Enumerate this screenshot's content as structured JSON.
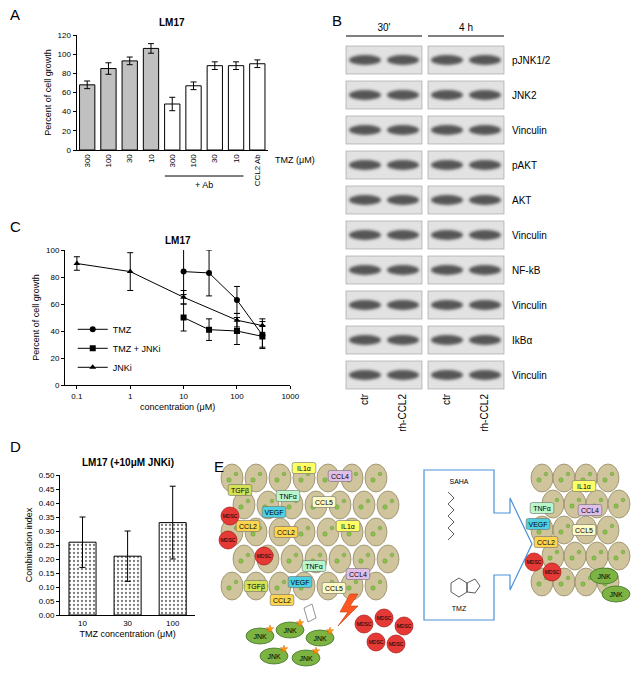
{
  "panel_labels": [
    "A",
    "B",
    "C",
    "D",
    "E"
  ],
  "chart_data": [
    {
      "panel": "A",
      "type": "bar",
      "title": "LM17",
      "categories": [
        "300",
        "100",
        "30",
        "10",
        "300",
        "100",
        "30",
        "10",
        "CCL2 Ab"
      ],
      "values": [
        68,
        85,
        93,
        106,
        48,
        67,
        88,
        88,
        90
      ],
      "errors": [
        4,
        6,
        4,
        5,
        7,
        4,
        4,
        4,
        4
      ],
      "colors": [
        "#c0c0c0",
        "#c0c0c0",
        "#c0c0c0",
        "#c0c0c0",
        "#ffffff",
        "#ffffff",
        "#ffffff",
        "#ffffff",
        "#ffffff"
      ],
      "ylabel": "Percent of cell growth",
      "xlabel": "TMZ (μM)",
      "ylim": [
        0,
        120
      ],
      "yticks": [
        0,
        20,
        40,
        60,
        80,
        100,
        120
      ],
      "grid": false,
      "annotations": [
        {
          "text": "+ Ab",
          "from": 4,
          "to": 7
        }
      ]
    },
    {
      "panel": "C",
      "type": "line",
      "title": "LM17",
      "xlabel": "concentration (μM)",
      "ylabel": "Percent of cell growth",
      "log": "x",
      "xlim": [
        0.06,
        1000
      ],
      "xticks": [
        0.1,
        1,
        10,
        100,
        1000
      ],
      "ylim": [
        0,
        100
      ],
      "yticks": [
        0,
        20,
        40,
        60,
        80,
        100
      ],
      "grid": false,
      "legend": "left",
      "series": [
        {
          "name": "TMZ",
          "marker": "circle",
          "color": "#000000",
          "x": [
            10,
            30,
            100,
            300
          ],
          "values": [
            84,
            83,
            63,
            37
          ],
          "errors": [
            17,
            17,
            10,
            10
          ]
        },
        {
          "name": "TMZ + JNKi",
          "marker": "square",
          "color": "#000000",
          "x": [
            10,
            30,
            100,
            300
          ],
          "values": [
            50,
            41,
            40,
            36
          ],
          "errors": [
            10,
            8,
            10,
            8
          ]
        },
        {
          "name": "JNKi",
          "marker": "triangle",
          "color": "#000000",
          "x": [
            0.1,
            1,
            10,
            100,
            300
          ],
          "values": [
            90,
            84,
            65,
            48,
            44
          ],
          "errors": [
            5,
            14,
            5,
            5,
            5
          ]
        }
      ]
    },
    {
      "panel": "D",
      "type": "bar",
      "title": "LM17 (+10μM JNKi)",
      "categories": [
        "10",
        "30",
        "100"
      ],
      "values": [
        0.26,
        0.21,
        0.33
      ],
      "errors": [
        0.09,
        0.09,
        0.13
      ],
      "color": "#d3d3d3",
      "ylabel": "Combination index",
      "xlabel": "TMZ concentration (μM)",
      "ylim": [
        0,
        0.5
      ],
      "yticks": [
        {
          "value": 0,
          "label": "0.00"
        },
        {
          "value": 0.05,
          "label": "0.05"
        },
        {
          "value": 0.1,
          "label": "0.10"
        },
        {
          "value": 0.15,
          "label": "0.15"
        },
        {
          "value": 0.2,
          "label": "0.20"
        },
        {
          "value": 0.25,
          "label": "0.25"
        },
        {
          "value": 0.3,
          "label": "0.30"
        },
        {
          "value": 0.35,
          "label": "0.35"
        },
        {
          "value": 0.4,
          "label": "0.40"
        },
        {
          "value": 0.45,
          "label": "0.45"
        },
        {
          "value": 0.5,
          "label": "0.50"
        }
      ],
      "grid": false
    }
  ],
  "blot": {
    "panel": "B",
    "time_points": [
      "30'",
      "4 h"
    ],
    "rows": [
      "pJNK1/2",
      "JNK2",
      "Vinculin",
      "pAKT",
      "AKT",
      "Vinculin",
      "NF-kB",
      "Vinculin",
      "IkBα",
      "Vinculin"
    ],
    "lanes": [
      "ctr",
      "rh-CCL2"
    ]
  },
  "diagram": {
    "panel": "E",
    "left_factors": [
      {
        "text": "IL1α",
        "color": "#ffff66"
      },
      {
        "text": "CCL4",
        "color": "#e1bee7"
      },
      {
        "text": "TGFβ",
        "color": "#d4e157"
      },
      {
        "text": "TNFα",
        "color": "#b9f6ca"
      },
      {
        "text": "CCL5",
        "color": "#fff9c4"
      },
      {
        "text": "VEGF",
        "color": "#4dd0e1"
      },
      {
        "text": "CCL2",
        "color": "#ffd54f"
      },
      {
        "text": "CCL2",
        "color": "#ffd54f"
      },
      {
        "text": "IL1α",
        "color": "#ffff66"
      },
      {
        "text": "TNFα",
        "color": "#b9f6ca"
      },
      {
        "text": "CCL4",
        "color": "#e1bee7"
      },
      {
        "text": "VEGF",
        "color": "#4dd0e1"
      },
      {
        "text": "CCL5",
        "color": "#fff9c4"
      },
      {
        "text": "TGFβ",
        "color": "#d4e157"
      },
      {
        "text": "CCL2",
        "color": "#ffd54f"
      }
    ],
    "right_factors": [
      {
        "text": "IL1α",
        "color": "#ffff66"
      },
      {
        "text": "TNFα",
        "color": "#b9f6ca"
      },
      {
        "text": "CCL4",
        "color": "#e1bee7"
      },
      {
        "text": "VEGF",
        "color": "#4dd0e1"
      },
      {
        "text": "CCL5",
        "color": "#fff9c4"
      },
      {
        "text": "CCL2",
        "color": "#ffd54f"
      }
    ],
    "left_mdsc": [
      "MDSC",
      "MDSC",
      "MDSC",
      "MDSC",
      "MDSC",
      "MDSC",
      "MDSC",
      "MDSC"
    ],
    "right_mdsc": [
      "MDSC",
      "MDSC"
    ],
    "left_jnk": [
      "JNK",
      "JNK",
      "JNK",
      "JNK",
      "JNK"
    ],
    "right_jnk": [
      "JNK",
      "JNK"
    ],
    "drugs": [
      "SAHA",
      "TMZ"
    ]
  }
}
